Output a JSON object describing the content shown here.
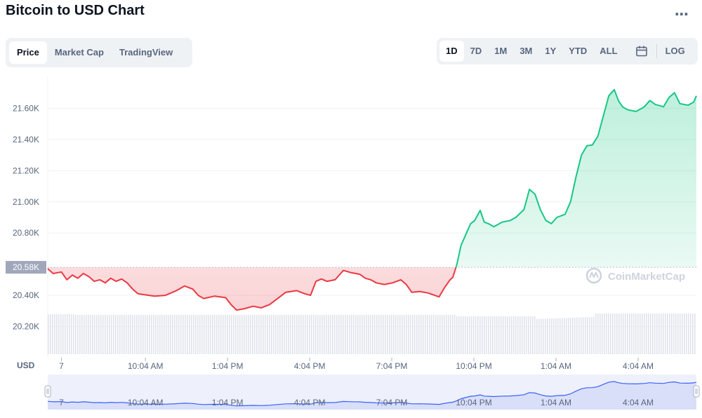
{
  "header": {
    "title": "Bitcoin to USD Chart"
  },
  "tabs": [
    {
      "label": "Price",
      "active": true
    },
    {
      "label": "Market Cap",
      "active": false
    },
    {
      "label": "TradingView",
      "active": false
    }
  ],
  "ranges": [
    {
      "label": "1D",
      "active": true
    },
    {
      "label": "7D",
      "active": false
    },
    {
      "label": "1M",
      "active": false
    },
    {
      "label": "3M",
      "active": false
    },
    {
      "label": "1Y",
      "active": false
    },
    {
      "label": "YTD",
      "active": false
    },
    {
      "label": "ALL",
      "active": false
    }
  ],
  "log_label": "LOG",
  "icons": {
    "more": "more-icon",
    "calendar": "calendar-icon",
    "brand": "coinmarketcap-logo-icon"
  },
  "watermark": "CoinMarketCap",
  "colors": {
    "up": "#16c784",
    "down": "#ea3943",
    "nav_line": "#3861fb"
  },
  "chart_data": {
    "type": "line",
    "ylabel": "USD",
    "yticks": [
      {
        "value": 20200,
        "label": "20.20K"
      },
      {
        "value": 20400,
        "label": "20.40K"
      },
      {
        "value": 20800,
        "label": "20.80K"
      },
      {
        "value": 21000,
        "label": "21.00K"
      },
      {
        "value": 21200,
        "label": "21.20K"
      },
      {
        "value": 21400,
        "label": "21.40K"
      },
      {
        "value": 21600,
        "label": "21.60K"
      }
    ],
    "ylim": [
      20000,
      21800
    ],
    "reference": {
      "value": 20580,
      "label": "20.58K"
    },
    "xticks": [
      {
        "t": 0.0,
        "label": "7"
      },
      {
        "t": 3.07,
        "label": "10:04 AM"
      },
      {
        "t": 6.07,
        "label": "1:04 PM"
      },
      {
        "t": 9.07,
        "label": "4:04 PM"
      },
      {
        "t": 12.07,
        "label": "7:04 PM"
      },
      {
        "t": 15.07,
        "label": "10:04 PM"
      },
      {
        "t": 18.07,
        "label": "1:04 AM"
      },
      {
        "t": 21.07,
        "label": "4:04 AM"
      }
    ],
    "xlim": [
      -0.5,
      23.2
    ],
    "series_points": [
      [
        -0.5,
        20570
      ],
      [
        -0.3,
        20540
      ],
      [
        0.0,
        20550
      ],
      [
        0.2,
        20500
      ],
      [
        0.4,
        20530
      ],
      [
        0.6,
        20510
      ],
      [
        0.8,
        20540
      ],
      [
        1.0,
        20520
      ],
      [
        1.2,
        20490
      ],
      [
        1.4,
        20500
      ],
      [
        1.6,
        20480
      ],
      [
        1.8,
        20510
      ],
      [
        2.0,
        20490
      ],
      [
        2.2,
        20505
      ],
      [
        2.4,
        20480
      ],
      [
        2.6,
        20440
      ],
      [
        2.8,
        20410
      ],
      [
        3.0,
        20405
      ],
      [
        3.4,
        20395
      ],
      [
        3.8,
        20400
      ],
      [
        4.2,
        20430
      ],
      [
        4.5,
        20460
      ],
      [
        4.8,
        20440
      ],
      [
        5.0,
        20400
      ],
      [
        5.2,
        20380
      ],
      [
        5.6,
        20395
      ],
      [
        6.0,
        20385
      ],
      [
        6.2,
        20340
      ],
      [
        6.4,
        20305
      ],
      [
        6.7,
        20315
      ],
      [
        7.0,
        20330
      ],
      [
        7.3,
        20320
      ],
      [
        7.6,
        20340
      ],
      [
        7.9,
        20380
      ],
      [
        8.2,
        20420
      ],
      [
        8.6,
        20430
      ],
      [
        8.9,
        20410
      ],
      [
        9.1,
        20400
      ],
      [
        9.3,
        20490
      ],
      [
        9.5,
        20505
      ],
      [
        9.7,
        20490
      ],
      [
        10.0,
        20500
      ],
      [
        10.3,
        20560
      ],
      [
        10.6,
        20545
      ],
      [
        10.9,
        20535
      ],
      [
        11.1,
        20510
      ],
      [
        11.3,
        20500
      ],
      [
        11.5,
        20480
      ],
      [
        11.8,
        20470
      ],
      [
        12.1,
        20480
      ],
      [
        12.4,
        20500
      ],
      [
        12.6,
        20470
      ],
      [
        12.8,
        20420
      ],
      [
        13.1,
        20425
      ],
      [
        13.4,
        20415
      ],
      [
        13.8,
        20390
      ],
      [
        14.0,
        20450
      ],
      [
        14.2,
        20500
      ],
      [
        14.3,
        20515
      ],
      [
        14.45,
        20600
      ],
      [
        14.6,
        20720
      ],
      [
        14.8,
        20800
      ],
      [
        14.95,
        20860
      ],
      [
        15.1,
        20880
      ],
      [
        15.3,
        20945
      ],
      [
        15.45,
        20870
      ],
      [
        15.6,
        20860
      ],
      [
        15.8,
        20840
      ],
      [
        16.1,
        20870
      ],
      [
        16.4,
        20880
      ],
      [
        16.6,
        20900
      ],
      [
        16.9,
        20950
      ],
      [
        17.1,
        21080
      ],
      [
        17.3,
        21050
      ],
      [
        17.5,
        20950
      ],
      [
        17.7,
        20880
      ],
      [
        17.9,
        20860
      ],
      [
        18.1,
        20900
      ],
      [
        18.4,
        20920
      ],
      [
        18.6,
        21000
      ],
      [
        18.8,
        21160
      ],
      [
        19.0,
        21300
      ],
      [
        19.2,
        21360
      ],
      [
        19.4,
        21365
      ],
      [
        19.6,
        21420
      ],
      [
        19.8,
        21550
      ],
      [
        20.0,
        21680
      ],
      [
        20.2,
        21720
      ],
      [
        20.35,
        21650
      ],
      [
        20.5,
        21610
      ],
      [
        20.7,
        21590
      ],
      [
        21.0,
        21580
      ],
      [
        21.3,
        21610
      ],
      [
        21.5,
        21650
      ],
      [
        21.7,
        21625
      ],
      [
        22.0,
        21610
      ],
      [
        22.2,
        21670
      ],
      [
        22.4,
        21700
      ],
      [
        22.6,
        21630
      ],
      [
        22.9,
        21620
      ],
      [
        23.1,
        21640
      ],
      [
        23.2,
        21680
      ]
    ]
  }
}
